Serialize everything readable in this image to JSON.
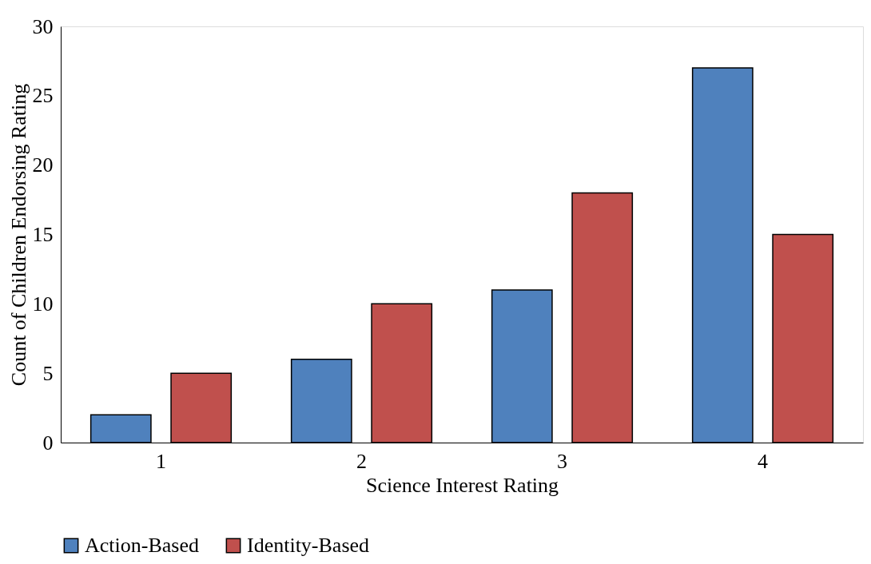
{
  "chart_data": {
    "type": "bar",
    "xlabel": "Science Interest Rating",
    "ylabel": "Count of Children Endorsing Rating",
    "categories": [
      "1",
      "2",
      "3",
      "4"
    ],
    "series": [
      {
        "name": "Action-Based",
        "color": "#4f81bd",
        "values": [
          2,
          6,
          11,
          27
        ]
      },
      {
        "name": "Identity-Based",
        "color": "#c0504d",
        "values": [
          5,
          10,
          18,
          15
        ]
      }
    ],
    "ylim": [
      0,
      30
    ],
    "yticks": [
      0,
      5,
      10,
      15,
      20,
      25,
      30
    ],
    "grid": false,
    "legend": "bottom"
  }
}
